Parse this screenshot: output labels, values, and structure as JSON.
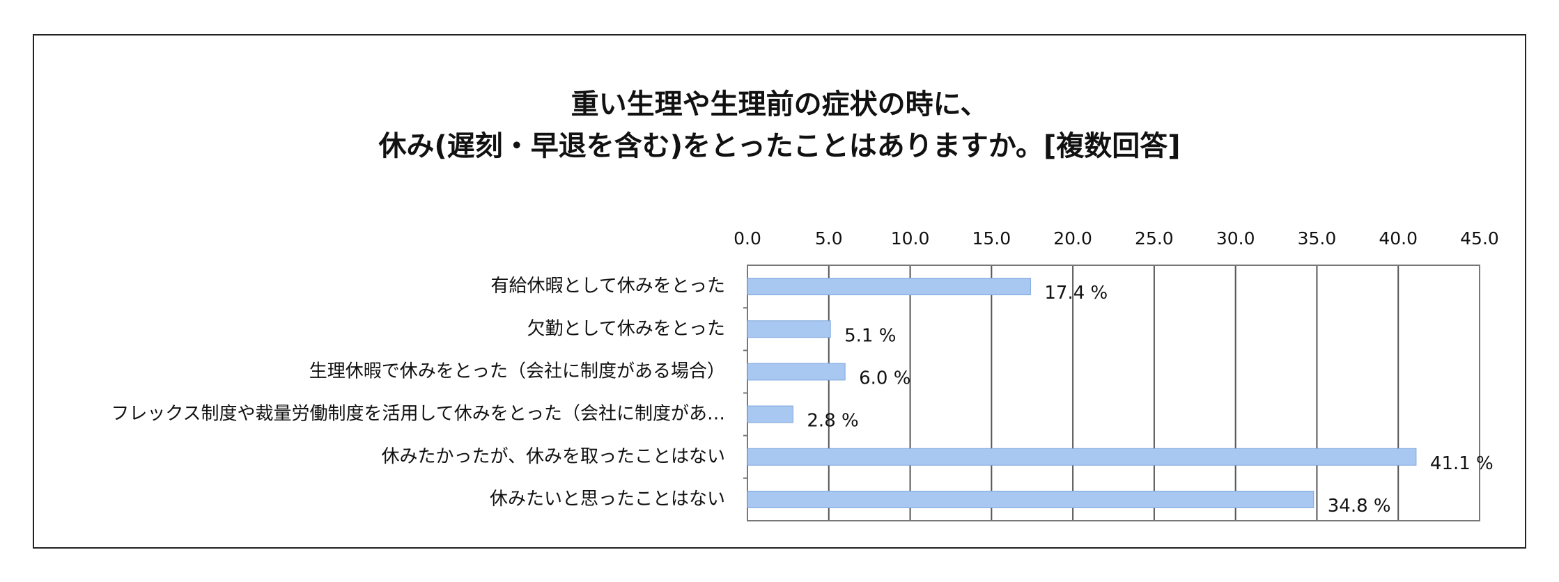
{
  "colors": {
    "bar": "#a8c8f2",
    "bar_stroke": "#7ea6dc",
    "grid": "#555555",
    "frame": "#222222"
  },
  "chart_data": {
    "type": "bar",
    "orientation": "horizontal",
    "title": [
      "重い生理や生理前の症状の時に、",
      "休み(遅刻・早退を含む)をとったことはありますか。[複数回答]"
    ],
    "xlabel": "",
    "ylabel": "",
    "xlim": [
      0,
      45
    ],
    "xticks": [
      "0.0",
      "5.0",
      "10.0",
      "15.0",
      "20.0",
      "25.0",
      "30.0",
      "35.0",
      "40.0",
      "45.0"
    ],
    "xaxis_position": "top",
    "grid": true,
    "legend": "none",
    "categories": [
      "有給休暇として休みをとった",
      "欠勤として休みをとった",
      "生理休暇で休みをとった（会社に制度がある場合）",
      "フレックス制度や裁量労働制度を活用して休みをとった（会社に制度があ…",
      "休みたかったが、休みを取ったことはない",
      "休みたいと思ったことはない"
    ],
    "values": [
      17.4,
      5.1,
      6.0,
      2.8,
      41.1,
      34.8
    ],
    "value_labels": [
      "17.4 %",
      "5.1 %",
      "6.0 %",
      "2.8 %",
      "41.1 %",
      "34.8 %"
    ]
  }
}
